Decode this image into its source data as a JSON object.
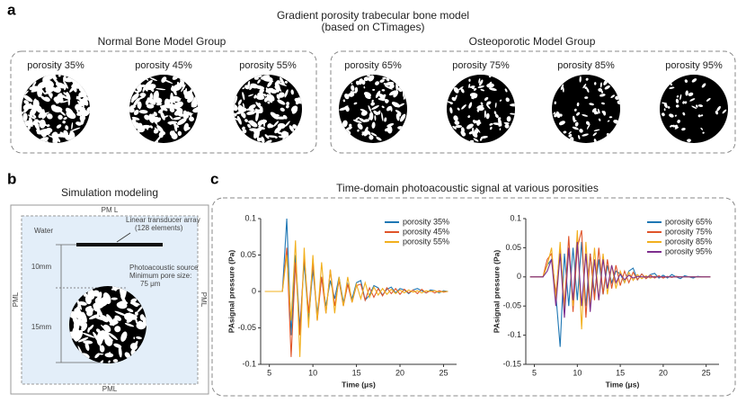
{
  "panel_a": {
    "letter": "a",
    "title": "Gradient porosity trabecular bone model",
    "subtitle": "(based on CTimages)",
    "groups": [
      {
        "title": "Normal Bone Model Group",
        "items": [
          "porosity 35%",
          "porosity 45%",
          "porosity 55%"
        ]
      },
      {
        "title": "Osteoporotic Model Group",
        "items": [
          "porosity 65%",
          "porosity 75%",
          "porosity 85%",
          "porosity 95%"
        ]
      }
    ]
  },
  "panel_b": {
    "letter": "b",
    "title": "Simulation modeling",
    "pml_top": "PM L",
    "pml_bottom": "PML",
    "pml_left": "PML",
    "pml_right": "PML",
    "water": "Water",
    "transducer": [
      "Linear transducer array",
      "(128 elements)"
    ],
    "source": [
      "Photoacoustic source",
      "Minimum pore size:",
      "75 μm"
    ],
    "dim_top": "10mm",
    "dim_bottom": "15mm"
  },
  "panel_c": {
    "letter": "c",
    "title": "Time-domain photoacoustic signal at various porosities"
  },
  "chart_data": [
    {
      "type": "line",
      "xlabel": "Time (μs)",
      "ylabel": "PAsignal pressure (Pa)",
      "x": [
        4.5,
        5,
        5.5,
        6,
        6.5,
        7,
        7.5,
        8,
        8.5,
        9,
        9.5,
        10,
        10.5,
        11,
        11.5,
        12,
        12.5,
        13,
        13.5,
        14,
        14.5,
        15,
        15.5,
        16,
        16.5,
        17,
        17.5,
        18,
        18.5,
        19,
        19.5,
        20,
        20.5,
        21,
        21.5,
        22,
        22.5,
        23,
        23.5,
        24,
        24.5,
        25,
        25.5
      ],
      "xlim": [
        4,
        26.5
      ],
      "xticks": [
        5,
        10,
        15,
        20,
        25
      ],
      "ylim": [
        -0.1,
        0.1
      ],
      "yticks": [
        -0.1,
        -0.05,
        0,
        0.05,
        0.1
      ],
      "legend": "upper right",
      "series": [
        {
          "name": "porosity 35%",
          "color": "#1f77b4",
          "values": [
            0,
            0,
            0,
            0,
            0,
            0.1,
            -0.06,
            0.05,
            -0.05,
            0.04,
            -0.04,
            0.03,
            -0.03,
            0.02,
            -0.02,
            0.015,
            -0.01,
            0.02,
            -0.015,
            0.01,
            -0.01,
            0.012,
            0.015,
            -0.012,
            -0.005,
            0.008,
            0.005,
            -0.005,
            0.003,
            0.006,
            -0.002,
            0.004,
            0.002,
            -0.003,
            0.002,
            0.004,
            0.001,
            -0.002,
            0.002,
            0.001,
            -0.002,
            0.001,
            0
          ]
        },
        {
          "name": "porosity 45%",
          "color": "#e0552a",
          "values": [
            0,
            0,
            0,
            0,
            0,
            0.06,
            -0.09,
            0.04,
            -0.06,
            0.05,
            -0.03,
            0.04,
            -0.04,
            0.02,
            -0.03,
            0.03,
            -0.02,
            0.015,
            -0.02,
            0.01,
            -0.015,
            0.008,
            0.01,
            -0.012,
            0.005,
            -0.008,
            0.004,
            -0.006,
            0.005,
            -0.003,
            0.004,
            -0.004,
            0.003,
            -0.002,
            0.002,
            -0.003,
            0.003,
            -0.002,
            0.001,
            -0.002,
            0.001,
            -0.001,
            0
          ]
        },
        {
          "name": "porosity 55%",
          "color": "#f2b01e",
          "values": [
            0,
            0,
            0,
            0,
            0,
            0.05,
            -0.04,
            0.07,
            -0.09,
            0.06,
            -0.05,
            0.05,
            -0.04,
            0.04,
            -0.03,
            0.03,
            -0.03,
            0.02,
            -0.02,
            0.02,
            -0.015,
            0.01,
            -0.01,
            0.012,
            -0.008,
            0.006,
            -0.005,
            0.004,
            -0.004,
            0.003,
            -0.003,
            0.002,
            -0.002,
            0.002,
            -0.001,
            0.001,
            -0.002,
            0.001,
            0,
            0.001,
            -0.001,
            0,
            0
          ]
        }
      ]
    },
    {
      "type": "line",
      "xlabel": "Time (μs)",
      "ylabel": "PAsignal pressure (Pa)",
      "x": [
        4.5,
        5,
        5.5,
        6,
        6.5,
        7,
        7.5,
        8,
        8.5,
        9,
        9.5,
        10,
        10.5,
        11,
        11.5,
        12,
        12.5,
        13,
        13.5,
        14,
        14.5,
        15,
        15.5,
        16,
        16.5,
        17,
        17.5,
        18,
        18.5,
        19,
        19.5,
        20,
        20.5,
        21,
        21.5,
        22,
        22.5,
        23,
        23.5,
        24,
        24.5,
        25,
        25.5
      ],
      "xlim": [
        4,
        26.5
      ],
      "xticks": [
        5,
        10,
        15,
        20,
        25
      ],
      "ylim": [
        -0.15,
        0.1
      ],
      "yticks": [
        -0.15,
        -0.1,
        -0.05,
        0,
        0.05,
        0.1
      ],
      "legend": "upper right",
      "series": [
        {
          "name": "porosity 65%",
          "color": "#1f77b4",
          "values": [
            0,
            0,
            0,
            0,
            0.02,
            0.03,
            -0.03,
            -0.12,
            0.04,
            -0.05,
            0.05,
            -0.04,
            0.06,
            -0.05,
            0.04,
            -0.03,
            0.03,
            -0.03,
            0.02,
            -0.01,
            0.01,
            0.005,
            -0.01,
            0.01,
            0.015,
            -0.005,
            0.005,
            -0.003,
            0.004,
            0.006,
            -0.002,
            0.003,
            -0.002,
            0.004,
            0,
            -0.003,
            0.002,
            0,
            -0.002,
            0.001,
            0,
            0,
            0
          ]
        },
        {
          "name": "porosity 75%",
          "color": "#e0552a",
          "values": [
            0,
            0,
            0,
            0,
            0.03,
            0.04,
            -0.03,
            0.05,
            -0.05,
            0.07,
            -0.06,
            0.05,
            0.08,
            -0.07,
            0.04,
            -0.04,
            0.05,
            -0.03,
            0.03,
            -0.02,
            0.02,
            -0.015,
            0.01,
            -0.01,
            0.008,
            -0.005,
            0.005,
            -0.003,
            0.003,
            -0.002,
            0.002,
            -0.002,
            0.001,
            -0.001,
            0.001,
            0,
            0,
            0,
            0,
            0,
            0,
            0,
            0
          ]
        },
        {
          "name": "porosity 85%",
          "color": "#f2b01e",
          "values": [
            0,
            0,
            0,
            0,
            0.02,
            0.05,
            -0.04,
            0.06,
            -0.06,
            0.05,
            -0.05,
            0.08,
            -0.09,
            0.06,
            -0.05,
            0.05,
            -0.04,
            0.04,
            -0.03,
            0.02,
            -0.02,
            0.01,
            -0.01,
            0.008,
            -0.006,
            0.004,
            -0.003,
            0.002,
            -0.002,
            0.001,
            0,
            0,
            0,
            0,
            0,
            0,
            0,
            0,
            0,
            0,
            0,
            0,
            0
          ]
        },
        {
          "name": "porosity 95%",
          "color": "#7e2f8e",
          "values": [
            0,
            0,
            0,
            0,
            0.01,
            0.03,
            -0.05,
            0.04,
            -0.07,
            0.05,
            -0.04,
            0.06,
            -0.05,
            0.04,
            -0.06,
            0.03,
            -0.04,
            0.03,
            -0.02,
            0.02,
            -0.01,
            0.005,
            -0.005,
            0.003,
            -0.002,
            0.001,
            0,
            0,
            0,
            0,
            0,
            0,
            0,
            0,
            0,
            0,
            0,
            0,
            0,
            0,
            0,
            0,
            0
          ]
        }
      ]
    }
  ]
}
